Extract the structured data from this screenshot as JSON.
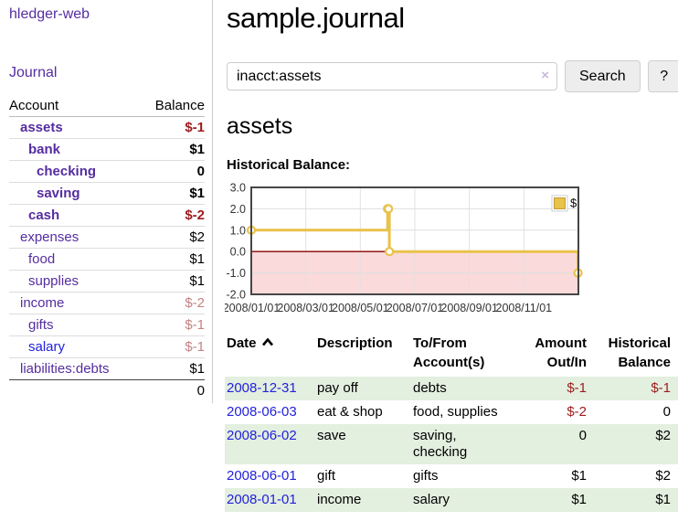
{
  "sidebar": {
    "brand": "hledger-web",
    "nav_journal": "Journal",
    "accounts": {
      "headers": [
        "Account",
        "Balance"
      ],
      "rows": [
        {
          "name": "assets",
          "balance": "$-1"
        },
        {
          "name": "bank",
          "balance": "$1"
        },
        {
          "name": "checking",
          "balance": "0"
        },
        {
          "name": "saving",
          "balance": "$1"
        },
        {
          "name": "cash",
          "balance": "$-2"
        },
        {
          "name": "expenses",
          "balance": "$2"
        },
        {
          "name": "food",
          "balance": "$1"
        },
        {
          "name": "supplies",
          "balance": "$1"
        },
        {
          "name": "income",
          "balance": "$-2"
        },
        {
          "name": "gifts",
          "balance": "$-1"
        },
        {
          "name": "salary",
          "balance": "$-1"
        },
        {
          "name": "liabilities:debts",
          "balance": "$1"
        }
      ],
      "total": "0"
    }
  },
  "main": {
    "title": "sample.journal",
    "search": {
      "value": "inacct:assets",
      "clear": "×",
      "submit": "Search",
      "help": "?"
    },
    "account_heading": "assets",
    "section_heading": "Historical Balance:"
  },
  "register": {
    "headers": [
      "Date",
      "Description",
      "To/From Account(s)",
      "Amount Out/In",
      "Historical Balance"
    ],
    "rows": [
      {
        "date": "2008-12-31",
        "description": "pay off",
        "accounts": "debts",
        "amount": "$-1",
        "balance": "$-1"
      },
      {
        "date": "2008-06-03",
        "description": "eat & shop",
        "accounts": "food, supplies",
        "amount": "$-2",
        "balance": "0"
      },
      {
        "date": "2008-06-02",
        "description": "save",
        "accounts": "saving, checking",
        "amount": "0",
        "balance": "$2"
      },
      {
        "date": "2008-06-01",
        "description": "gift",
        "accounts": "gifts",
        "amount": "$1",
        "balance": "$2"
      },
      {
        "date": "2008-01-01",
        "description": "income",
        "accounts": "salary",
        "amount": "$1",
        "balance": "$1"
      }
    ]
  },
  "chart_data": {
    "type": "line",
    "title": "Historical Balance:",
    "series": [
      {
        "name": "$",
        "color": "#e9c24a",
        "step": true,
        "points": [
          [
            "2008-01-01",
            1.0
          ],
          [
            "2008-06-01",
            2.0
          ],
          [
            "2008-06-02",
            2.0
          ],
          [
            "2008-06-03",
            0.0
          ],
          [
            "2008-12-31",
            -1.0
          ]
        ]
      }
    ],
    "x_ticks": [
      "2008/01/01",
      "2008/03/01",
      "2008/05/01",
      "2008/07/01",
      "2008/09/01",
      "2008/11/01"
    ],
    "y_ticks": [
      3.0,
      2.0,
      1.0,
      0.0,
      -1.0,
      -2.0
    ],
    "ylim": [
      -2.0,
      3.0
    ],
    "x_range_months": [
      0,
      12
    ],
    "grid": true,
    "negative_region_fill": "#fadada",
    "zero_line_color": "#8c0000",
    "legend": {
      "label": "$",
      "position": "top-right"
    }
  }
}
